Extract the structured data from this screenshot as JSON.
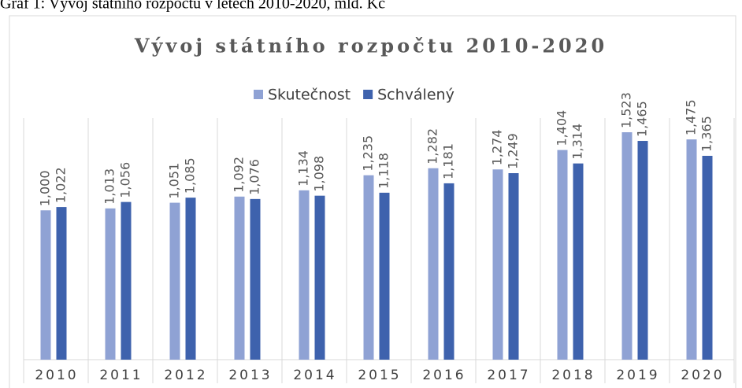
{
  "caption": "Graf 1: Vývoj státního rozpočtu v letech 2010-2020, mld. Kč",
  "chart_data": {
    "type": "bar",
    "title": "Vývoj státního rozpočtu 2010-2020",
    "categories": [
      "2010",
      "2011",
      "2012",
      "2013",
      "2014",
      "2015",
      "2016",
      "2017",
      "2018",
      "2019",
      "2020"
    ],
    "series": [
      {
        "name": "Skutečnost",
        "color": "#8fa2d4",
        "values": [
          1000,
          1013,
          1051,
          1092,
          1134,
          1235,
          1282,
          1274,
          1404,
          1523,
          1475
        ],
        "value_labels": [
          "1,000",
          "1,013",
          "1,051",
          "1,092",
          "1,134",
          "1,235",
          "1,282",
          "1,274",
          "1,404",
          "1,523",
          "1,475"
        ]
      },
      {
        "name": "Schválený",
        "color": "#3e62ad",
        "values": [
          1022,
          1056,
          1085,
          1076,
          1098,
          1118,
          1181,
          1249,
          1314,
          1465,
          1365
        ],
        "value_labels": [
          "1,022",
          "1,056",
          "1,085",
          "1,076",
          "1,098",
          "1,118",
          "1,181",
          "1,249",
          "1,314",
          "1,465",
          "1,365"
        ]
      }
    ],
    "ylim": [
      0,
      1618
    ],
    "legend": "top"
  }
}
